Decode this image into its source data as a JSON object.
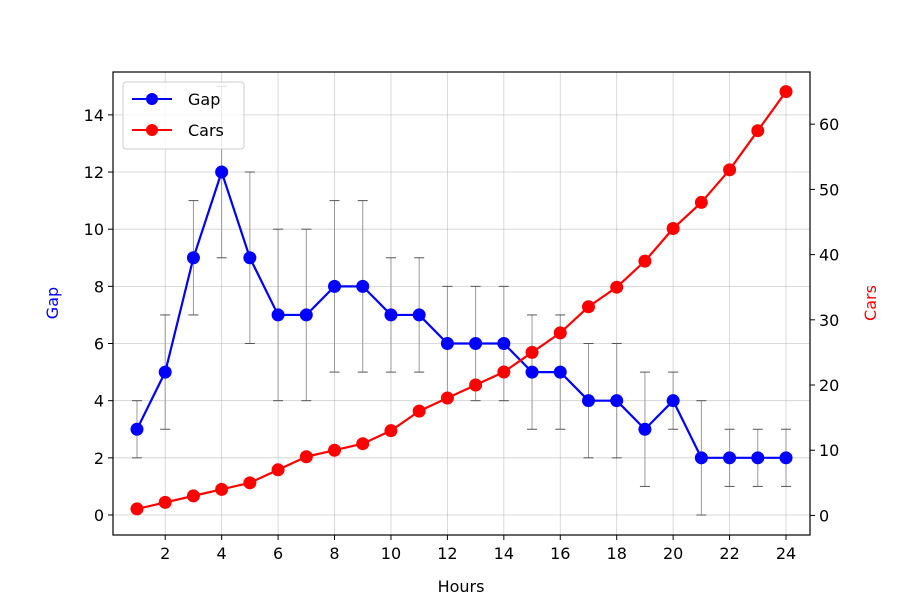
{
  "chart_data": {
    "type": "line",
    "x": [
      1,
      2,
      3,
      4,
      5,
      6,
      7,
      8,
      9,
      10,
      11,
      12,
      13,
      14,
      15,
      16,
      17,
      18,
      19,
      20,
      21,
      22,
      23,
      24
    ],
    "xlabel": "Hours",
    "x_ticks": [
      2,
      4,
      6,
      8,
      10,
      12,
      14,
      16,
      18,
      20,
      22,
      24
    ],
    "xlim": [
      0.15,
      24.85
    ],
    "grid": true,
    "legend_position": "top-left",
    "left_axis": {
      "label": "Gap",
      "color": "#0000ff",
      "ylim": [
        -0.7,
        15.5
      ],
      "ticks": [
        0,
        2,
        4,
        6,
        8,
        10,
        12,
        14
      ]
    },
    "right_axis": {
      "label": "Cars",
      "color": "#ff0000",
      "ylim": [
        -3,
        68
      ],
      "ticks": [
        0,
        10,
        20,
        30,
        40,
        50,
        60
      ]
    },
    "series": [
      {
        "name": "Gap",
        "axis": "left",
        "color": "#0000ff",
        "values": [
          3,
          5,
          9,
          12,
          9,
          7,
          7,
          8,
          8,
          7,
          7,
          6,
          6,
          6,
          5,
          5,
          4,
          4,
          3,
          4,
          2,
          2,
          2,
          2
        ],
        "error_low": [
          2,
          3,
          7,
          9,
          6,
          4,
          4,
          5,
          5,
          5,
          5,
          4,
          4,
          4,
          3,
          3,
          2,
          2,
          1,
          3,
          0,
          1,
          1,
          1
        ],
        "error_high": [
          4,
          7,
          11,
          15,
          12,
          10,
          10,
          11,
          11,
          9,
          9,
          8,
          8,
          8,
          7,
          7,
          6,
          6,
          5,
          5,
          4,
          3,
          3,
          3
        ]
      },
      {
        "name": "Cars",
        "axis": "right",
        "color": "#ff0000",
        "values": [
          1,
          2,
          3,
          4,
          5,
          7,
          9,
          10,
          11,
          13,
          16,
          18,
          20,
          22,
          25,
          28,
          32,
          35,
          39,
          44,
          48,
          53,
          59,
          65
        ]
      }
    ]
  }
}
